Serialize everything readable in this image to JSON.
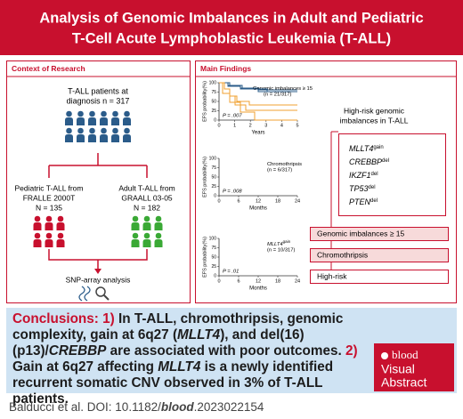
{
  "title": [
    "Analysis of Genomic Imbalances in Adult and Pediatric",
    "T-Cell Acute Lymphoblastic Leukemia (T-ALL)"
  ],
  "context": {
    "heading": "Context of Research",
    "patients": [
      "T-ALL patients at",
      "diagnosis n = 317"
    ],
    "pediatric": [
      "Pediatric T-ALL from",
      "FRALLE 2000T",
      "N = 135"
    ],
    "adult": [
      "Adult T-ALL from",
      "GRAALL 03-05",
      "N = 182"
    ],
    "method": "SNP-array analysis"
  },
  "findings": {
    "heading": "Main Findings",
    "plots": [
      {
        "ylabel": "EFS probability(%)",
        "yticks": [
          100,
          75,
          50,
          25,
          0
        ],
        "xticks": [
          0,
          1,
          2,
          3,
          4,
          5
        ],
        "xlabel": "Years",
        "legend": {
          "name": "Genomic imbalances ≥ 15",
          "n": "(n = 21/317)"
        },
        "p": "P = .007"
      },
      {
        "ylabel": "EFS probability(%)",
        "yticks": [
          100,
          75,
          50,
          25,
          0
        ],
        "xticks": [
          0,
          6,
          12,
          18,
          24
        ],
        "xlabel": "Months",
        "legend": {
          "name": "Chromothripsis",
          "n": "(n = 6/317)"
        },
        "p": "P = .008"
      },
      {
        "ylabel": "EFS probability(%)",
        "yticks": [
          100,
          75,
          50,
          25,
          0
        ],
        "xticks": [
          0,
          6,
          12,
          18,
          24
        ],
        "xlabel": "Months",
        "legend": {
          "name": "MLLT4",
          "sup": "gain",
          "n": "(n = 10/317)"
        },
        "p": "P = .01"
      }
    ],
    "highrisk": {
      "heading": [
        "High-risk genomic",
        "imbalances in T-ALL"
      ],
      "genes": [
        {
          "name": "MLLT4",
          "sup": "gain"
        },
        {
          "name": "CREBBP",
          "sup": "del"
        },
        {
          "name": "IKZF1",
          "sup": "del"
        },
        {
          "name": "TP53",
          "sup": "del"
        },
        {
          "name": "PTEN",
          "sup": "del"
        }
      ],
      "boxes": [
        "Genomic imbalances ≥ 15",
        "Chromothripsis",
        "High-risk"
      ]
    }
  },
  "conclusions": [
    "Conclusions: 1)",
    " In T-ALL, chromothripsis, genomic complexity, gain at 6q27 (",
    "MLLT4",
    "), and del(16)(p13)/",
    "CREBBP",
    " are associated with poor outcomes. ",
    "2)",
    " Gain at 6q27 affecting ",
    "MLLT4",
    " is a newly identified recurrent somatic CNV observed in 3% of T-ALL patients."
  ],
  "logo": [
    "blood",
    "Visual",
    "Abstract"
  ],
  "citation": [
    "Balducci et al. DOI: 10.1182/",
    "blood",
    ".2023022154"
  ]
}
